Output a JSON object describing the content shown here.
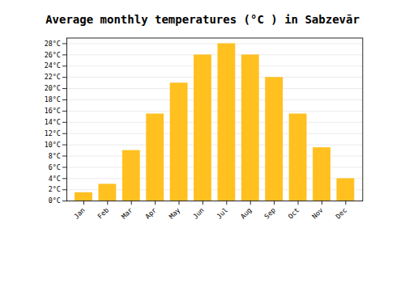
{
  "chart_data": {
    "type": "bar",
    "title": "Average monthly temperatures (°C ) in Sabzevār",
    "categories": [
      "Jan",
      "Feb",
      "Mar",
      "Apr",
      "May",
      "Jun",
      "Jul",
      "Aug",
      "Sep",
      "Oct",
      "Nov",
      "Dec"
    ],
    "values": [
      1.5,
      3.0,
      9.0,
      15.5,
      21.0,
      26.0,
      28.0,
      26.0,
      22.0,
      15.5,
      9.5,
      4.0
    ],
    "color": "#FFC020",
    "ylim": [
      0,
      29
    ],
    "yticks": [
      {
        "value": 0,
        "label": "0°C"
      },
      {
        "value": 2,
        "label": "2°C"
      },
      {
        "value": 4,
        "label": "4°C"
      },
      {
        "value": 6,
        "label": "6°C"
      },
      {
        "value": 8,
        "label": "8°C"
      },
      {
        "value": 10,
        "label": "10°C"
      },
      {
        "value": 12,
        "label": "12°C"
      },
      {
        "value": 14,
        "label": "14°C"
      },
      {
        "value": 16,
        "label": "16°C"
      },
      {
        "value": 18,
        "label": "18°C"
      },
      {
        "value": 20,
        "label": "20°C"
      },
      {
        "value": 22,
        "label": "22°C"
      },
      {
        "value": 24,
        "label": "24°C"
      },
      {
        "value": 26,
        "label": "26°C"
      },
      {
        "value": 28,
        "label": "28°C"
      }
    ],
    "grid": true
  }
}
